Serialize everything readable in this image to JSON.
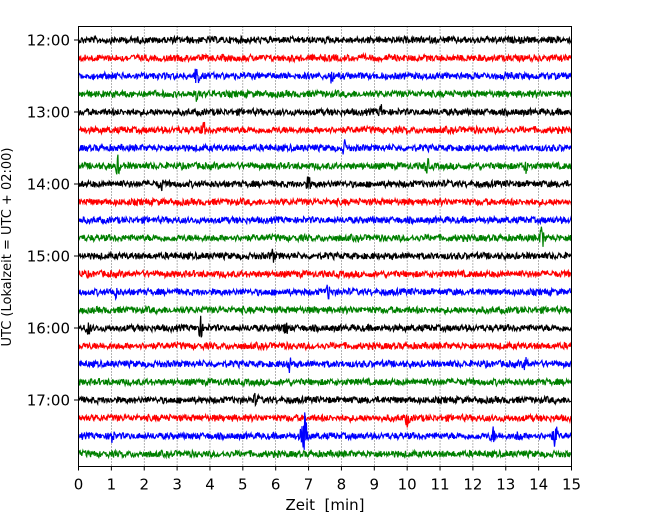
{
  "chart_data": {
    "type": "line",
    "subtype": "helicorder",
    "xlabel": "Zeit  [min]",
    "ylabel": "UTC (Lokalzeit = UTC + 02:00)",
    "xlim": [
      0,
      15
    ],
    "x_ticks": [
      "0",
      "1",
      "2",
      "3",
      "4",
      "5",
      "6",
      "7",
      "8",
      "9",
      "10",
      "11",
      "12",
      "13",
      "14",
      "15"
    ],
    "y_tick_labels": [
      "12:00",
      "13:00",
      "14:00",
      "15:00",
      "16:00",
      "17:00"
    ],
    "rows_per_hour": 4,
    "row_count": 24,
    "row_start_times": [
      "12:00",
      "12:15",
      "12:30",
      "12:45",
      "13:00",
      "13:15",
      "13:30",
      "13:45",
      "14:00",
      "14:15",
      "14:30",
      "14:45",
      "15:00",
      "15:15",
      "15:30",
      "15:45",
      "16:00",
      "16:15",
      "16:30",
      "16:45",
      "17:00",
      "17:15",
      "17:30",
      "17:45"
    ],
    "colors": [
      "#000000",
      "#ff0000",
      "#0000ff",
      "#008000"
    ],
    "grid": "vertical dotted at each minute",
    "noise_level": 1.0,
    "events": [
      {
        "row": 2,
        "minute": 3.6,
        "amplitude": 3.0
      },
      {
        "row": 2,
        "minute": 7.7,
        "amplitude": 1.8
      },
      {
        "row": 3,
        "minute": 3.6,
        "amplitude": 1.4
      },
      {
        "row": 4,
        "minute": 9.2,
        "amplitude": 1.8
      },
      {
        "row": 5,
        "minute": 3.8,
        "amplitude": 1.8
      },
      {
        "row": 6,
        "minute": 8.1,
        "amplitude": 1.8
      },
      {
        "row": 7,
        "minute": 1.2,
        "amplitude": 2.6
      },
      {
        "row": 7,
        "minute": 10.6,
        "amplitude": 2.2
      },
      {
        "row": 7,
        "minute": 13.6,
        "amplitude": 1.5
      },
      {
        "row": 8,
        "minute": 2.5,
        "amplitude": 1.8
      },
      {
        "row": 8,
        "minute": 7.0,
        "amplitude": 1.8
      },
      {
        "row": 11,
        "minute": 14.1,
        "amplitude": 3.4
      },
      {
        "row": 12,
        "minute": 5.9,
        "amplitude": 1.8
      },
      {
        "row": 14,
        "minute": 1.1,
        "amplitude": 2.0
      },
      {
        "row": 14,
        "minute": 7.6,
        "amplitude": 1.8
      },
      {
        "row": 16,
        "minute": 0.3,
        "amplitude": 1.8
      },
      {
        "row": 16,
        "minute": 3.7,
        "amplitude": 3.2
      },
      {
        "row": 16,
        "minute": 6.3,
        "amplitude": 1.8
      },
      {
        "row": 18,
        "minute": 6.4,
        "amplitude": 2.0
      },
      {
        "row": 18,
        "minute": 13.6,
        "amplitude": 1.8
      },
      {
        "row": 20,
        "minute": 5.4,
        "amplitude": 1.8
      },
      {
        "row": 21,
        "minute": 10.0,
        "amplitude": 2.0
      },
      {
        "row": 22,
        "minute": 1.0,
        "amplitude": 2.4
      },
      {
        "row": 22,
        "minute": 6.8,
        "amplitude": 2.4
      },
      {
        "row": 22,
        "minute": 6.9,
        "amplitude": 7.5
      },
      {
        "row": 22,
        "minute": 12.6,
        "amplitude": 2.4
      },
      {
        "row": 22,
        "minute": 13.4,
        "amplitude": 1.5
      },
      {
        "row": 22,
        "minute": 14.5,
        "amplitude": 3.6
      }
    ]
  }
}
